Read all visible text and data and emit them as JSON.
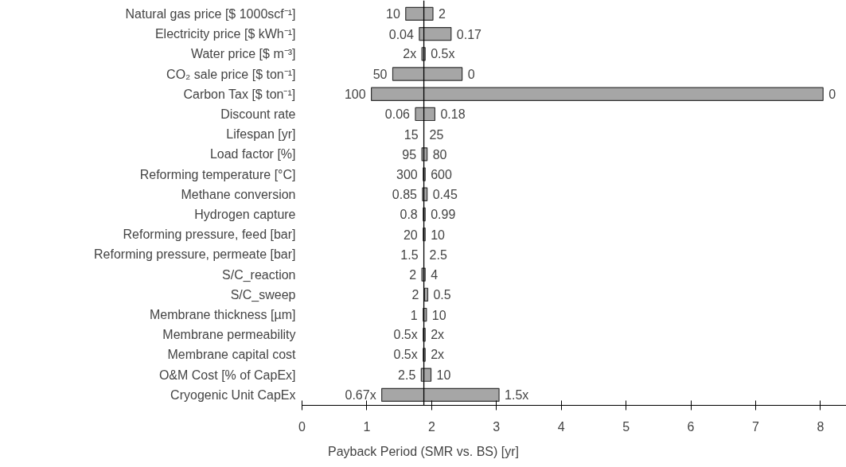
{
  "chart_data": {
    "type": "bar",
    "orientation": "horizontal",
    "xlabel": "Payback Period (SMR vs. BS) [yr]",
    "categories": [
      "Natural gas price [$ 1000scf⁻¹]",
      "Electricity price [$ kWh⁻¹]",
      "Water price [$ m⁻³]",
      "CO₂ sale price [$ ton⁻¹]",
      "Carbon Tax [$ ton⁻¹]",
      "Discount rate",
      "Lifespan [yr]",
      "Load factor [%]",
      "Reforming temperature [°C]",
      "Methane conversion",
      "Hydrogen capture",
      "Reforming pressure, feed [bar]",
      "Reforming pressure, permeate [bar]",
      "S/C_reaction",
      "S/C_sweep",
      "Membrane thickness [µm]",
      "Membrane permeability",
      "Membrane capital cost",
      "O&M Cost [% of CapEx]",
      "Cryogenic Unit CapEx"
    ],
    "base": [
      1.6,
      1.81,
      1.85,
      1.4,
      1.07,
      1.75,
      null,
      1.85,
      1.87,
      1.86,
      1.87,
      1.87,
      null,
      1.85,
      1.89,
      1.87,
      1.87,
      1.87,
      1.84,
      1.23
    ],
    "values": [
      0.42,
      0.49,
      0.05,
      1.07,
      6.97,
      0.3,
      null,
      0.08,
      0.03,
      0.07,
      0.03,
      0.03,
      null,
      0.05,
      0.05,
      0.05,
      0.03,
      0.03,
      0.15,
      1.81
    ],
    "color": "#a6a6a6",
    "xlim": [
      0,
      8.4
    ],
    "xticks": [
      0,
      1,
      2,
      3,
      4,
      5,
      6,
      7,
      8
    ],
    "grid": false,
    "tick_labels": "x",
    "ref_lines": [
      {
        "axis": "x",
        "value": 1.88,
        "label": null,
        "color": "#000000"
      }
    ],
    "annotations": [
      {
        "text": "10",
        "x": 1.6,
        "y": "Natural gas price [$ 1000scf⁻¹]"
      },
      {
        "text": "2",
        "x": 2.02,
        "y": "Natural gas price [$ 1000scf⁻¹]"
      },
      {
        "text": "0.04",
        "x": 1.81,
        "y": "Electricity price [$ kWh⁻¹]"
      },
      {
        "text": "0.17",
        "x": 2.3,
        "y": "Electricity price [$ kWh⁻¹]"
      },
      {
        "text": "2x",
        "x": 1.85,
        "y": "Water price [$ m⁻³]"
      },
      {
        "text": "0.5x",
        "x": 1.9,
        "y": "Water price [$ m⁻³]"
      },
      {
        "text": "50",
        "x": 1.4,
        "y": "CO₂ sale price [$ ton⁻¹]"
      },
      {
        "text": "0",
        "x": 2.47,
        "y": "CO₂ sale price [$ ton⁻¹]"
      },
      {
        "text": "100",
        "x": 1.07,
        "y": "Carbon Tax [$ ton⁻¹]"
      },
      {
        "text": "0",
        "x": 8.04,
        "y": "Carbon Tax [$ ton⁻¹]"
      },
      {
        "text": "0.06",
        "x": 1.75,
        "y": "Discount rate"
      },
      {
        "text": "0.18",
        "x": 2.05,
        "y": "Discount rate"
      },
      {
        "text": "15",
        "x": 1.88,
        "y": "Lifespan [yr]"
      },
      {
        "text": "25",
        "x": 1.88,
        "y": "Lifespan [yr]"
      },
      {
        "text": "95",
        "x": 1.85,
        "y": "Load factor [%]"
      },
      {
        "text": "80",
        "x": 1.93,
        "y": "Load factor [%]"
      },
      {
        "text": "300",
        "x": 1.87,
        "y": "Reforming temperature [°C]"
      },
      {
        "text": "600",
        "x": 1.9,
        "y": "Reforming temperature [°C]"
      },
      {
        "text": "0.85",
        "x": 1.86,
        "y": "Methane conversion"
      },
      {
        "text": "0.45",
        "x": 1.93,
        "y": "Methane conversion"
      },
      {
        "text": "0.8",
        "x": 1.87,
        "y": "Hydrogen capture"
      },
      {
        "text": "0.99",
        "x": 1.9,
        "y": "Hydrogen capture"
      },
      {
        "text": "20",
        "x": 1.87,
        "y": "Reforming pressure, feed [bar]"
      },
      {
        "text": "10",
        "x": 1.9,
        "y": "Reforming pressure, feed [bar]"
      },
      {
        "text": "1.5",
        "x": 1.88,
        "y": "Reforming pressure, permeate [bar]"
      },
      {
        "text": "2.5",
        "x": 1.88,
        "y": "Reforming pressure, permeate [bar]"
      },
      {
        "text": "2",
        "x": 1.85,
        "y": "S/C_reaction"
      },
      {
        "text": "4",
        "x": 1.9,
        "y": "S/C_reaction"
      },
      {
        "text": "2",
        "x": 1.89,
        "y": "S/C_sweep"
      },
      {
        "text": "0.5",
        "x": 1.94,
        "y": "S/C_sweep"
      },
      {
        "text": "1",
        "x": 1.87,
        "y": "Membrane thickness [µm]"
      },
      {
        "text": "10",
        "x": 1.92,
        "y": "Membrane thickness [µm]"
      },
      {
        "text": "0.5x",
        "x": 1.87,
        "y": "Membrane permeability"
      },
      {
        "text": "2x",
        "x": 1.9,
        "y": "Membrane permeability"
      },
      {
        "text": "0.5x",
        "x": 1.87,
        "y": "Membrane capital cost"
      },
      {
        "text": "2x",
        "x": 1.9,
        "y": "Membrane capital cost"
      },
      {
        "text": "2.5",
        "x": 1.84,
        "y": "O&M Cost [% of CapEx]"
      },
      {
        "text": "10",
        "x": 1.99,
        "y": "O&M Cost [% of CapEx]"
      },
      {
        "text": "0.67x",
        "x": 1.23,
        "y": "Cryogenic Unit CapEx"
      },
      {
        "text": "1.5x",
        "x": 3.04,
        "y": "Cryogenic Unit CapEx"
      }
    ]
  }
}
